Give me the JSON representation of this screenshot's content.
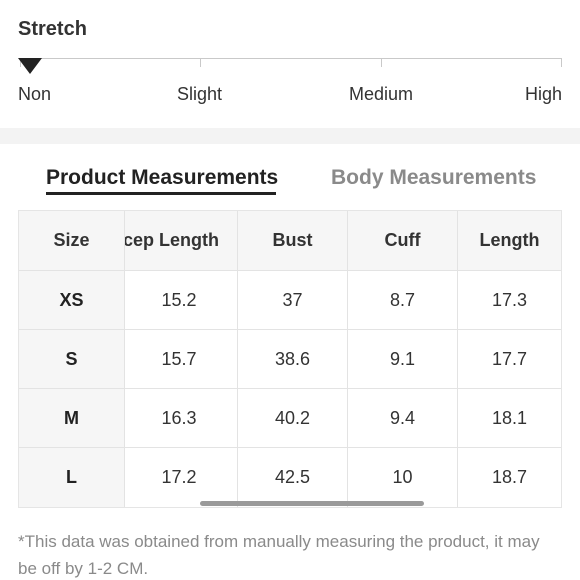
{
  "stretch": {
    "title": "Stretch",
    "levels": [
      "Non",
      "Slight",
      "Medium",
      "High"
    ],
    "selected": "Non"
  },
  "tabs": {
    "active": "Product Measurements",
    "inactive": "Body Measurements"
  },
  "table": {
    "size_header": "Size",
    "headers": [
      "icep Length",
      "Bust",
      "Cuff",
      "Length"
    ],
    "rows": [
      {
        "size": "XS",
        "values": [
          "15.2",
          "37",
          "8.7",
          "17.3"
        ]
      },
      {
        "size": "S",
        "values": [
          "15.7",
          "38.6",
          "9.1",
          "17.7"
        ]
      },
      {
        "size": "M",
        "values": [
          "16.3",
          "40.2",
          "9.4",
          "18.1"
        ]
      },
      {
        "size": "L",
        "values": [
          "17.2",
          "42.5",
          "10",
          "18.7"
        ]
      }
    ]
  },
  "footnote": "*This data was obtained from manually measuring the product, it may be off by 1-2 CM."
}
